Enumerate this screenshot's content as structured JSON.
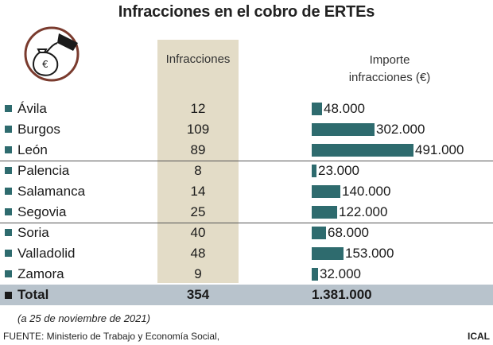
{
  "title": "Infracciones en el cobro de ERTEs",
  "headers": {
    "infracciones": "Infracciones",
    "importe_line1": "Importe",
    "importe_line2": "infracciones (€)"
  },
  "logo": {
    "icon": "money-bag-hand-icon",
    "glyph": "€",
    "ring_color": "#7a3b2e"
  },
  "colors": {
    "bar": "#2e6b6e",
    "shade": "#e3dcc7",
    "total_bg": "#b8c3cc"
  },
  "chart_data": {
    "type": "bar",
    "title": "Infracciones en el cobro de ERTEs",
    "categories": [
      "Ávila",
      "Burgos",
      "León",
      "Palencia",
      "Salamanca",
      "Segovia",
      "Soria",
      "Valladolid",
      "Zamora"
    ],
    "infracciones": [
      12,
      109,
      89,
      8,
      14,
      25,
      40,
      48,
      9
    ],
    "importe_values": [
      48000,
      302000,
      491000,
      23000,
      140000,
      122000,
      68000,
      153000,
      32000
    ],
    "importe_labels": [
      "48.000",
      "302.000",
      "491.000",
      "23.000",
      "140.000",
      "122.000",
      "68.000",
      "153.000",
      "32.000"
    ],
    "series": [
      {
        "name": "Importe infracciones (€)",
        "values": [
          48000,
          302000,
          491000,
          23000,
          140000,
          122000,
          68000,
          153000,
          32000
        ]
      }
    ],
    "groups": [
      [
        "Ávila",
        "Burgos",
        "León"
      ],
      [
        "Palencia",
        "Salamanca",
        "Segovia"
      ],
      [
        "Soria",
        "Valladolid",
        "Zamora"
      ]
    ]
  },
  "total": {
    "label": "Total",
    "infracciones": "354",
    "importe": "1.381.000"
  },
  "note": "(a 25 de noviembre de 2021)",
  "source": "FUENTE: Ministerio de Trabajo y Economía Social,",
  "credit": "ICAL"
}
